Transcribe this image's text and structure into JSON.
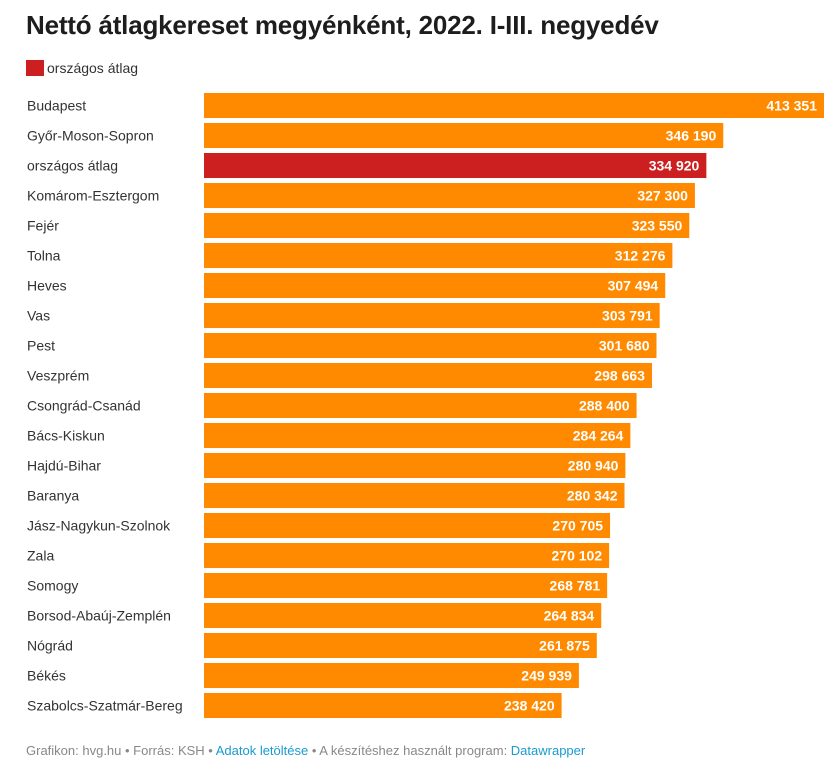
{
  "title": "Nettó átlagkereset megyénként, 2022. I-III. negyedév",
  "legend": {
    "label": "országos átlag",
    "color": "#cc2020"
  },
  "colors": {
    "bar": "#ff8a00",
    "highlight": "#cc2020"
  },
  "footer": {
    "credit": "Grafikon: hvg.hu • Forrás: KSH • ",
    "download_link": "Adatok letöltése",
    "middle": " • A készítéshez használt program: ",
    "tool_link": "Datawrapper"
  },
  "chart_data": {
    "type": "bar",
    "orientation": "horizontal",
    "title": "Nettó átlagkereset megyénként, 2022. I-III. negyedév",
    "highlight_category": "országos átlag",
    "categories": [
      "Budapest",
      "Győr-Moson-Sopron",
      "országos átlag",
      "Komárom-Esztergom",
      "Fejér",
      "Tolna",
      "Heves",
      "Vas",
      "Pest",
      "Veszprém",
      "Csongrád-Csanád",
      "Bács-Kiskun",
      "Hajdú-Bihar",
      "Baranya",
      "Jász-Nagykun-Szolnok",
      "Zala",
      "Somogy",
      "Borsod-Abaúj-Zemplén",
      "Nógrád",
      "Békés",
      "Szabolcs-Szatmár-Bereg"
    ],
    "values": [
      413351,
      346190,
      334920,
      327300,
      323550,
      312276,
      307494,
      303791,
      301680,
      298663,
      288400,
      284264,
      280940,
      280342,
      270705,
      270102,
      268781,
      264834,
      261875,
      249939,
      238420
    ],
    "value_labels": [
      "413 351",
      "346 190",
      "334 920",
      "327 300",
      "323 550",
      "312 276",
      "307 494",
      "303 791",
      "301 680",
      "298 663",
      "288 400",
      "284 264",
      "280 940",
      "280 342",
      "270 705",
      "270 102",
      "268 781",
      "264 834",
      "261 875",
      "249 939",
      "238 420"
    ],
    "xlim": [
      0,
      413351
    ],
    "grid": false
  }
}
